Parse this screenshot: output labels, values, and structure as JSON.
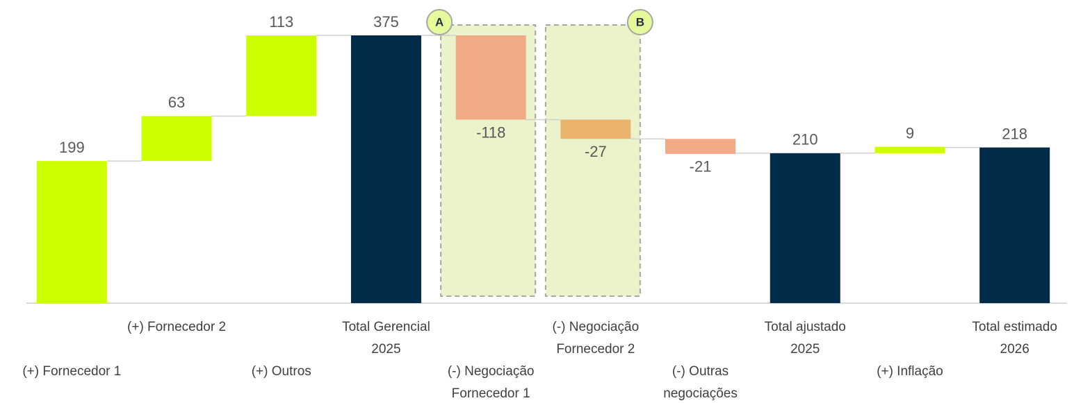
{
  "chart_data": {
    "type": "waterfall",
    "categories": [
      [
        "(+) Fornecedor 1"
      ],
      [
        "(+) Fornecedor 2"
      ],
      [
        "(+) Outros"
      ],
      [
        "Total Gerencial",
        "2025"
      ],
      [
        "(-) Negociação",
        "Fornecedor 1"
      ],
      [
        "(-) Negociação",
        "Fornecedor 2"
      ],
      [
        "(-) Outras",
        "negociações"
      ],
      [
        "Total ajustado",
        "2025"
      ],
      [
        "(+) Inflação"
      ],
      [
        "Total estimado",
        "2026"
      ]
    ],
    "values": [
      199,
      63,
      113,
      375,
      -118,
      -27,
      -21,
      210,
      9,
      218
    ],
    "totals": [
      false,
      false,
      false,
      true,
      false,
      false,
      false,
      true,
      false,
      true
    ],
    "colors": [
      "#ccff00",
      "#ccff00",
      "#ccff00",
      "#002b49",
      "#f2a985",
      "#ebb46e",
      "#f2a985",
      "#002b49",
      "#ccff00",
      "#002b49"
    ],
    "annotations": [
      {
        "label": "A",
        "category": 4
      },
      {
        "label": "B",
        "category": 5
      }
    ]
  }
}
